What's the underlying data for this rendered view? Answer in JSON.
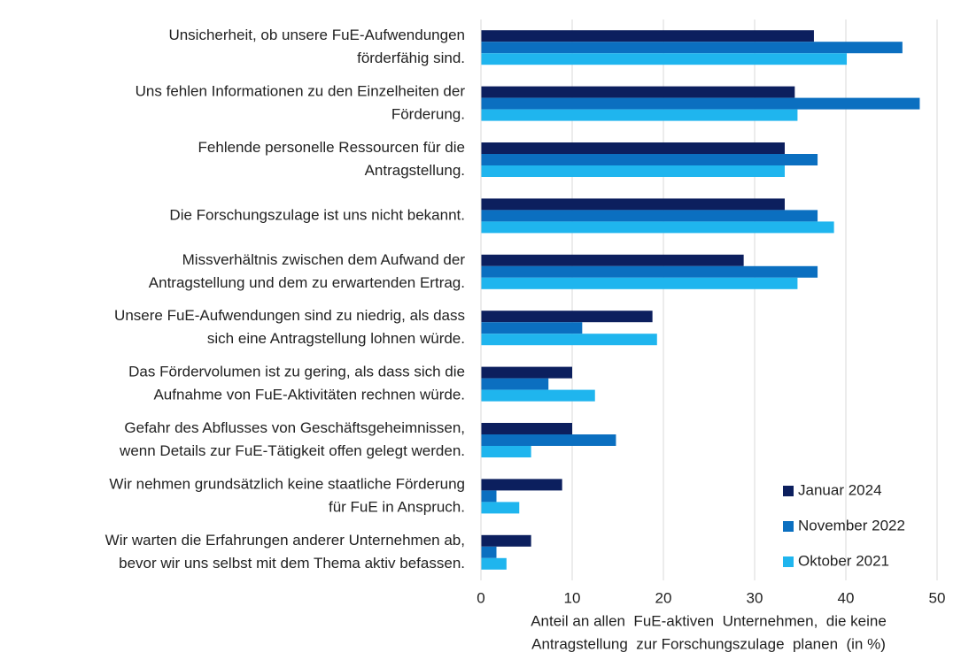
{
  "chart_data": {
    "type": "bar",
    "orientation": "horizontal",
    "categories": [
      [
        "Unsicherheit, ob unsere FuE-Aufwendungen",
        "förderfähig sind."
      ],
      [
        "Uns fehlen Informationen zu den Einzelheiten der",
        "Förderung."
      ],
      [
        "Fehlende personelle Ressourcen für die",
        "Antragstellung."
      ],
      [
        "Die Forschungszulage ist uns nicht bekannt."
      ],
      [
        "Missverhältnis zwischen dem Aufwand der",
        "Antragstellung und dem zu erwartenden Ertrag."
      ],
      [
        "Unsere FuE-Aufwendungen sind zu niedrig, als dass",
        "sich eine Antragstellung lohnen würde."
      ],
      [
        "Das Fördervolumen ist zu gering, als dass sich die",
        "Aufnahme von FuE-Aktivitäten rechnen würde."
      ],
      [
        "Gefahr des Abflusses von Geschäftsgeheimnissen,",
        "wenn Details zur FuE-Tätigkeit offen gelegt werden."
      ],
      [
        "Wir nehmen grundsätzlich keine staatliche Förderung",
        "für FuE in Anspruch."
      ],
      [
        "Wir warten die Erfahrungen anderer Unternehmen ab,",
        "bevor wir uns selbst mit dem Thema aktiv befassen."
      ]
    ],
    "series": [
      {
        "name": "Januar 2024",
        "color": "#0c1f5e",
        "values": [
          36.5,
          34.4,
          33.3,
          33.3,
          28.8,
          18.8,
          10.0,
          10.0,
          8.9,
          5.5
        ]
      },
      {
        "name": "November 2022",
        "color": "#0b6fc0",
        "values": [
          46.2,
          48.1,
          36.9,
          36.9,
          36.9,
          11.1,
          7.4,
          14.8,
          1.7,
          1.7
        ]
      },
      {
        "name": "Oktober 2021",
        "color": "#1fb5ee",
        "values": [
          40.1,
          34.7,
          33.3,
          38.7,
          34.7,
          19.3,
          12.5,
          5.5,
          4.2,
          2.8
        ]
      }
    ],
    "x_label": [
      "Anteil an allen  FuE-aktiven  Unternehmen,  die keine",
      "Antragstellung  zur Forschungszulage  planen  (in %)"
    ],
    "xlim": [
      0,
      50
    ],
    "xticks": [
      0,
      10,
      20,
      30,
      40,
      50
    ],
    "grid": true,
    "legend": "lower right"
  }
}
